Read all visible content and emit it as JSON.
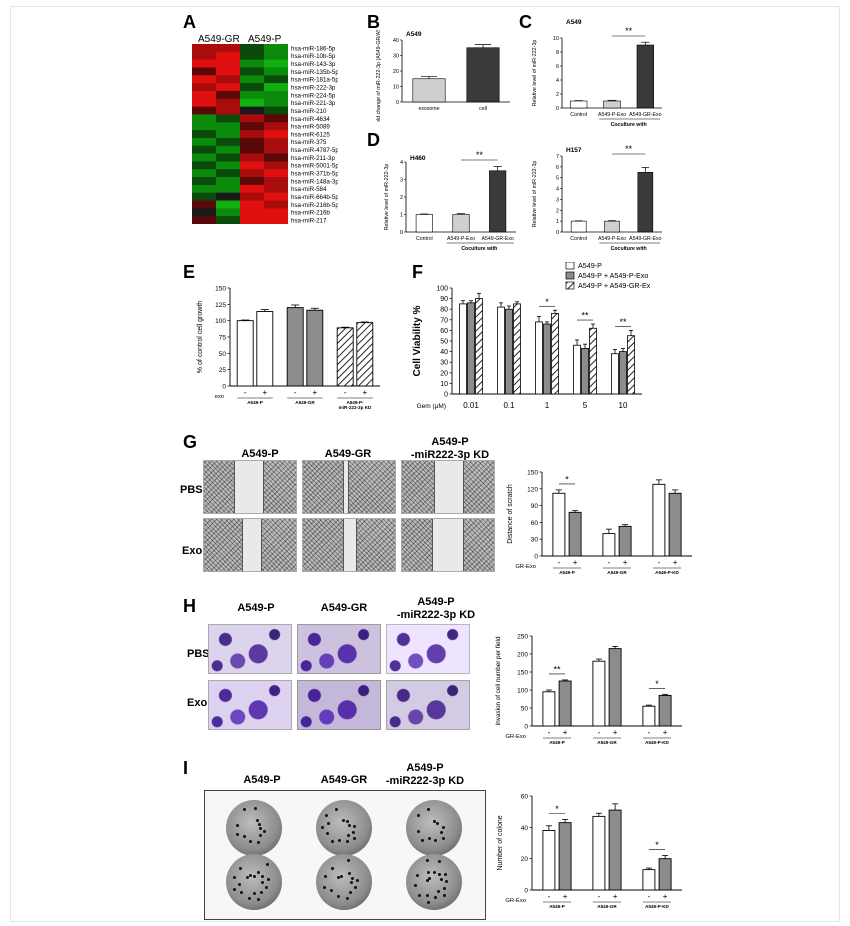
{
  "figure": {
    "panel_letters": [
      "A",
      "B",
      "C",
      "D",
      "E",
      "F",
      "G",
      "H",
      "I"
    ]
  },
  "panel_a": {
    "col_labels": [
      "A549-GR",
      "A549-P"
    ],
    "mirnas": [
      "hsa-miR-186-5p",
      "hsa-miR-10b-5p",
      "hsa-miR-143-3p",
      "hsa-miR-135b-5p",
      "hsa-miR-181a-5p",
      "hsa-miR-222-3p",
      "hsa-miR-224-5p",
      "hsa-miR-221-3p",
      "hsa-miR-210",
      "hsa-miR-4634",
      "hsa-miR-5089",
      "hsa-miR-6125",
      "hsa-miR-375",
      "hsa-miR-4787-5p",
      "hsa-miR-211-3p",
      "hsa-miR-5001-5p",
      "hsa-miR-371b-5p",
      "hsa-miR-148a-3p",
      "hsa-miR-584",
      "hsa-miR-664b-5p",
      "hsa-miR-216b-5p",
      "hsa-miR-216b",
      "hsa-miR-217"
    ]
  },
  "colors": {
    "white_bar": "#ffffff",
    "light_gray_bar": "#cfcfcf",
    "mid_gray_bar": "#8c8c8c",
    "dark_bar": "#3a3a3a",
    "heat_red": "#e01010",
    "heat_green": "#10b010",
    "heat_black": "#1a1a1a"
  },
  "chart_data": [
    {
      "panel": "B",
      "type": "bar",
      "title": "A549",
      "ylabel": "Fold change of miR-222-3p (A549-GR/A549-P)",
      "categories": [
        "exosome",
        "cell"
      ],
      "values": [
        15,
        35
      ],
      "errors": [
        1.5,
        2
      ],
      "ylim": [
        0,
        40
      ],
      "yticks": [
        0,
        10,
        20,
        30,
        40
      ]
    },
    {
      "panel": "C",
      "type": "bar",
      "title": "A549",
      "ylabel": "Relative level of miR-222-3p",
      "categories": [
        "Control",
        "A549-P-Exo",
        "A549-GR-Exo"
      ],
      "group_label": "Coculture with",
      "values": [
        1,
        1,
        9
      ],
      "errors": [
        0.05,
        0.1,
        0.4
      ],
      "ylim": [
        0,
        10
      ],
      "yticks": [
        0,
        2,
        4,
        6,
        8,
        10
      ],
      "significance": "**"
    },
    {
      "panel": "D-H460",
      "type": "bar",
      "title": "H460",
      "ylabel": "Relative level of miR-222-3p",
      "categories": [
        "Control",
        "A549-P-Exo",
        "A549-GR-Exo"
      ],
      "group_label": "Coculture with",
      "values": [
        1,
        1,
        3.5
      ],
      "errors": [
        0.03,
        0.05,
        0.25
      ],
      "ylim": [
        0,
        4
      ],
      "yticks": [
        0,
        1,
        2,
        3,
        4
      ],
      "significance": "**"
    },
    {
      "panel": "D-H157",
      "type": "bar",
      "title": "H157",
      "ylabel": "Relative level of miR-222-3p",
      "categories": [
        "Control",
        "A549-P-Exo",
        "A549-GR-Exo"
      ],
      "group_label": "Coculture with",
      "values": [
        1,
        1,
        5.5
      ],
      "errors": [
        0.03,
        0.05,
        0.45
      ],
      "ylim": [
        0,
        7
      ],
      "yticks": [
        0,
        1,
        2,
        3,
        4,
        5,
        6,
        7
      ],
      "significance": "**"
    },
    {
      "panel": "E",
      "type": "bar",
      "ylabel": "% of control cell growth",
      "exo_label": "exo",
      "exo_signs": [
        "-",
        "+",
        "-",
        "+",
        "-",
        "+"
      ],
      "groups": [
        "A549-P",
        "A549-GR",
        "A549-P-miR-222-3p KD"
      ],
      "values": [
        100,
        114,
        120,
        116,
        89,
        97
      ],
      "errors": [
        1,
        3,
        4,
        3,
        1,
        1
      ],
      "ylim": [
        0,
        150
      ],
      "yticks": [
        0,
        25,
        50,
        75,
        100,
        125,
        150
      ]
    },
    {
      "panel": "F",
      "type": "bar",
      "ylabel": "Cell Viability %",
      "xlabel": "Gem (μM)",
      "categories": [
        "0.01",
        "0.1",
        "1",
        "5",
        "10"
      ],
      "series": [
        {
          "name": "A549-P",
          "values": [
            85,
            82,
            68,
            46,
            38
          ],
          "errors": [
            3,
            4,
            5,
            5,
            4
          ]
        },
        {
          "name": "A549-P + A549-P-Exo",
          "values": [
            86,
            80,
            66,
            43,
            40
          ],
          "errors": [
            2,
            3,
            2,
            4,
            3
          ]
        },
        {
          "name": "A549-P + A549-GR-Exo",
          "values": [
            90,
            85,
            76,
            62,
            55
          ],
          "errors": [
            5,
            2,
            3,
            4,
            5
          ]
        }
      ],
      "ylim": [
        0,
        100
      ],
      "yticks": [
        0,
        10,
        20,
        30,
        40,
        50,
        60,
        70,
        80,
        90,
        100
      ],
      "significance": [
        "",
        "",
        "*",
        "**",
        "**"
      ]
    },
    {
      "panel": "G",
      "type": "bar",
      "ylabel": "Distance of scratch",
      "exo_label": "GR-Exo",
      "exo_signs": [
        "-",
        "+",
        "-",
        "+",
        "-",
        "+"
      ],
      "groups": [
        "A549-P",
        "A549-GR",
        "A549-P-KD"
      ],
      "values": [
        112,
        78,
        40,
        53,
        128,
        112
      ],
      "errors": [
        6,
        3,
        8,
        3,
        8,
        6
      ],
      "ylim": [
        0,
        150
      ],
      "yticks": [
        0,
        30,
        60,
        90,
        120,
        150
      ],
      "significance": [
        "*",
        "",
        ""
      ]
    },
    {
      "panel": "H",
      "type": "bar",
      "ylabel": "Invasion of cell number per field",
      "exo_label": "GR-Exo",
      "exo_signs": [
        "-",
        "+",
        "-",
        "+",
        "-",
        "+"
      ],
      "groups": [
        "A549-P",
        "A549-GR",
        "A549-P-KD"
      ],
      "values": [
        95,
        125,
        180,
        215,
        55,
        85
      ],
      "errors": [
        5,
        3,
        6,
        6,
        3,
        3
      ],
      "ylim": [
        0,
        250
      ],
      "yticks": [
        0,
        50,
        100,
        150,
        200,
        250
      ],
      "significance": [
        "**",
        "",
        "*"
      ]
    },
    {
      "panel": "I",
      "type": "bar",
      "ylabel": "Number of colone",
      "exo_label": "GR-Exo",
      "exo_signs": [
        "-",
        "+",
        "-",
        "+",
        "-",
        "+"
      ],
      "groups": [
        "A549-P",
        "A549-GR",
        "A549-P-KD"
      ],
      "values": [
        38,
        43,
        47,
        51,
        13,
        20
      ],
      "errors": [
        3,
        2,
        2,
        4,
        1,
        2
      ],
      "ylim": [
        0,
        60
      ],
      "yticks": [
        0,
        20,
        40,
        60
      ],
      "significance": [
        "*",
        "",
        "*"
      ]
    }
  ],
  "panel_g": {
    "col_headers": [
      "A549-P",
      "A549-GR",
      "A549-P\n-miR222-3p KD"
    ],
    "row_labels": [
      "PBS",
      "Exo"
    ]
  },
  "panel_h": {
    "col_headers": [
      "A549-P",
      "A549-GR",
      "A549-P\n-miR222-3p KD"
    ],
    "row_labels": [
      "PBS",
      "Exo"
    ]
  },
  "panel_i": {
    "col_headers": [
      "A549-P",
      "A549-GR",
      "A549-P\n-miR222-3p KD"
    ]
  }
}
